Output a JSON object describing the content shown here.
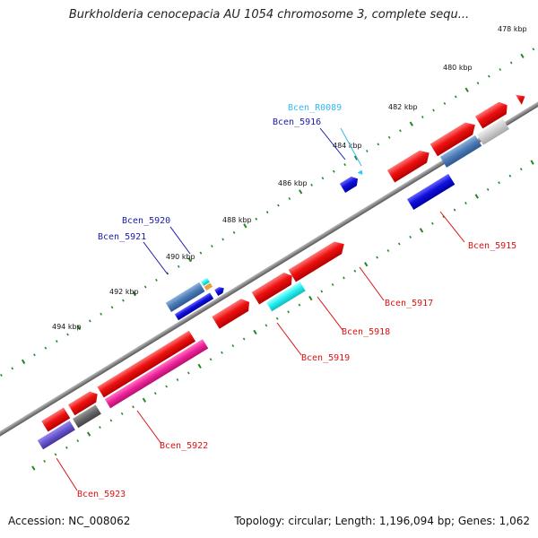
{
  "title": "Burkholderia cenocepacia AU 1054 chromosome 3, complete sequ...",
  "footer": {
    "accession": "Accession: NC_008062",
    "topology": "Topology: circular; Length: 1,196,094 bp; Genes: 1,062"
  },
  "ruler_labels": [
    "478 kbp",
    "480 kbp",
    "482 kbp",
    "484 kbp",
    "486 kbp",
    "488 kbp",
    "490 kbp",
    "492 kbp",
    "494 kbp"
  ],
  "gene_labels": [
    {
      "text": "Bcen_R0089",
      "color": "#33bbee"
    },
    {
      "text": "Bcen_5916",
      "color": "#1a1aaa"
    },
    {
      "text": "Bcen_5920",
      "color": "#1a1aaa"
    },
    {
      "text": "Bcen_5921",
      "color": "#1a1aaa"
    },
    {
      "text": "Bcen_5915",
      "color": "#dd1111"
    },
    {
      "text": "Bcen_5917",
      "color": "#dd1111"
    },
    {
      "text": "Bcen_5918",
      "color": "#dd1111"
    },
    {
      "text": "Bcen_5919",
      "color": "#dd1111"
    },
    {
      "text": "Bcen_5922",
      "color": "#dd1111"
    },
    {
      "text": "Bcen_5923",
      "color": "#dd1111"
    }
  ],
  "colors": {
    "backbone": "#888888",
    "tick": "#228822",
    "red": "#ee1111",
    "blue": "#1111dd",
    "steel": "#4a7ab5",
    "cyan": "#22eeee",
    "pink": "#ee2299",
    "gray": "#666666",
    "lightgray": "#cccccc",
    "purple": "#6655cc",
    "orange": "#e8a040"
  }
}
